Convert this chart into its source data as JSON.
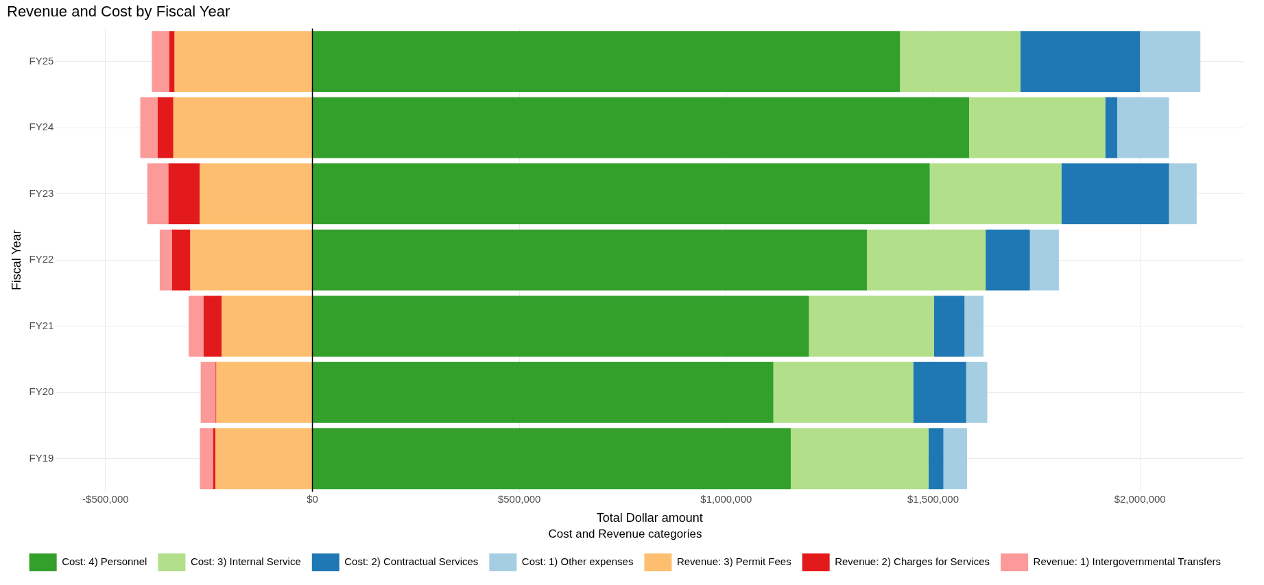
{
  "chart_data": {
    "type": "bar",
    "orientation": "horizontal",
    "stacked": true,
    "title": "Revenue and Cost by Fiscal Year",
    "xlabel": "Total Dollar amount",
    "ylabel": "Fiscal Year",
    "legend_title": "Cost and Revenue categories",
    "legend": "bottom",
    "grid": true,
    "categories": [
      "FY25",
      "FY24",
      "FY23",
      "FY22",
      "FY21",
      "FY20",
      "FY19"
    ],
    "xlim": [
      -620000,
      2250000
    ],
    "xticks": [
      {
        "value": -500000,
        "label": "-$500,000"
      },
      {
        "value": 0,
        "label": "$0"
      },
      {
        "value": 500000,
        "label": "$500,000"
      },
      {
        "value": 1000000,
        "label": "$1,000,000"
      },
      {
        "value": 1500000,
        "label": "$1,500,000"
      },
      {
        "value": 2000000,
        "label": "$2,000,000"
      }
    ],
    "ref_lines": [
      {
        "axis": "x",
        "value": 0,
        "color": "#000000"
      }
    ],
    "series": [
      {
        "name": "Cost: 4) Personnel",
        "color": "#33a02c",
        "values": [
          1420000,
          1587000,
          1492000,
          1340000,
          1200000,
          1114000,
          1156000
        ]
      },
      {
        "name": "Cost: 3) Internal Service",
        "color": "#b2df8a",
        "values": [
          291000,
          329000,
          318000,
          287000,
          302000,
          338000,
          333000
        ]
      },
      {
        "name": "Cost: 2) Contractual Services",
        "color": "#1f78b4",
        "values": [
          289000,
          29000,
          260000,
          107000,
          74000,
          128000,
          36000
        ]
      },
      {
        "name": "Cost: 1) Other expenses",
        "color": "#a6cee3",
        "values": [
          146000,
          125000,
          67000,
          70000,
          46000,
          51000,
          57000
        ]
      },
      {
        "name": "Revenue: 3) Permit Fees",
        "color": "#fdbf6f",
        "values": [
          -333000,
          -336000,
          -272000,
          -295000,
          -219000,
          -232000,
          -234000
        ]
      },
      {
        "name": "Revenue: 2) Charges for Services",
        "color": "#e31a1c",
        "values": [
          -13000,
          -38000,
          -76000,
          -44000,
          -44000,
          -2000,
          -6000
        ]
      },
      {
        "name": "Revenue: 1) Intergovernmental Transfers",
        "color": "#fb9a99",
        "values": [
          -42000,
          -42000,
          -51000,
          -30000,
          -36000,
          -36000,
          -32000
        ]
      }
    ]
  }
}
